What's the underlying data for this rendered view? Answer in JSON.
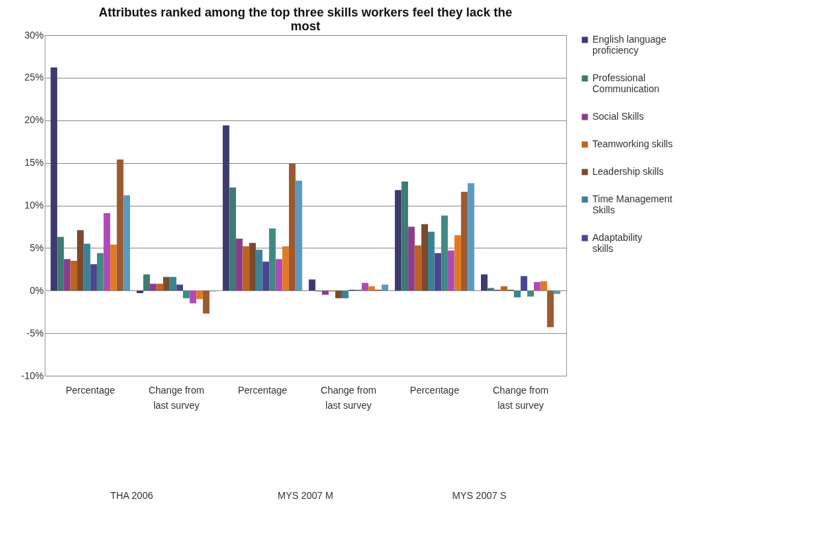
{
  "chart_data": {
    "type": "bar",
    "title": "Attributes ranked among the top three skills workers  feel they lack the most",
    "categories": [
      "Percentage",
      "Change from last survey",
      "Percentage",
      "Change from last survey",
      "Percentage",
      "Change from last survey"
    ],
    "series": [
      {
        "name": "English language proficiency",
        "color": "#3d3a6e",
        "values": [
          26.2,
          -0.3,
          19.4,
          1.3,
          11.8,
          1.9
        ]
      },
      {
        "name": "Professional Communication",
        "color": "#3e7b74",
        "values": [
          6.3,
          1.9,
          12.1,
          -0.1,
          12.8,
          0.3
        ]
      },
      {
        "name": "Social Skills",
        "color": "#8b3d8c",
        "values": [
          3.7,
          0.8,
          6.1,
          -0.5,
          7.5,
          0.1
        ]
      },
      {
        "name": "Teamworking skills",
        "color": "#c0621f",
        "values": [
          3.5,
          0.8,
          5.2,
          -0.1,
          5.3,
          0.5
        ]
      },
      {
        "name": "Leadership skills",
        "color": "#7b4a2e",
        "values": [
          7.1,
          1.6,
          5.6,
          -0.9,
          7.8,
          0.1
        ]
      },
      {
        "name": "Time Management Skills",
        "color": "#3a8296",
        "values": [
          5.5,
          1.6,
          4.8,
          -0.9,
          6.9,
          -0.8
        ]
      },
      {
        "name": "Adaptability skills",
        "color": "#4a4590",
        "values": [
          3.1,
          0.7,
          3.4,
          0.1,
          4.4,
          1.7
        ]
      },
      {
        "color": "#3f8a82",
        "values": [
          4.4,
          -0.9,
          7.3,
          0.1,
          8.8,
          -0.7
        ]
      },
      {
        "color": "#b04ab8",
        "values": [
          9.1,
          -1.5,
          3.7,
          0.9,
          4.7,
          1.0
        ]
      },
      {
        "color": "#e27a25",
        "values": [
          5.4,
          -1.0,
          5.2,
          0.5,
          6.5,
          1.1
        ]
      },
      {
        "color": "#9b5a30",
        "values": [
          15.4,
          -2.7,
          14.9,
          0.1,
          11.6,
          -4.3
        ]
      },
      {
        "color": "#5a9ac0",
        "values": [
          11.2,
          -0.1,
          12.9,
          0.7,
          12.6,
          -0.4
        ]
      }
    ],
    "ylim": [
      -10,
      30
    ],
    "yticks": [
      {
        "value": -10,
        "label": "-10%"
      },
      {
        "value": -5,
        "label": "-5%"
      },
      {
        "value": 0,
        "label": "0%"
      },
      {
        "value": 5,
        "label": "5%"
      },
      {
        "value": 10,
        "label": "10%"
      },
      {
        "value": 15,
        "label": "15%"
      },
      {
        "value": 20,
        "label": "20%"
      },
      {
        "value": 25,
        "label": "25%"
      },
      {
        "value": 30,
        "label": "30%"
      }
    ],
    "grid": "y",
    "legend": "right",
    "annotations": [
      "THA 2006",
      "MYS 2007 M",
      "MYS 2007 S"
    ]
  }
}
